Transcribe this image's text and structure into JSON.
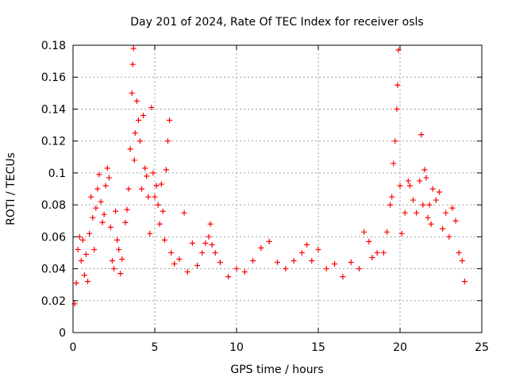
{
  "chart_data": {
    "type": "scatter",
    "title": "Day 201 of 2024, Rate Of TEC Index for receiver osls",
    "xlabel": "GPS time / hours",
    "ylabel": "ROTI / TECUs",
    "xlim": [
      0,
      25
    ],
    "ylim": [
      0,
      0.18
    ],
    "xticks": [
      "0",
      "5",
      "10",
      "15",
      "20",
      "25"
    ],
    "yticks": [
      "0",
      "0.02",
      "0.04",
      "0.06",
      "0.08",
      "0.1",
      "0.12",
      "0.14",
      "0.16",
      "0.18"
    ],
    "grid": true,
    "legend": "none",
    "marker": "+",
    "color": "#ff0000",
    "series": [
      {
        "points": [
          [
            0.1,
            0.018
          ],
          [
            0.2,
            0.031
          ],
          [
            0.3,
            0.052
          ],
          [
            0.4,
            0.06
          ],
          [
            0.5,
            0.045
          ],
          [
            0.6,
            0.058
          ],
          [
            0.7,
            0.036
          ],
          [
            0.8,
            0.049
          ],
          [
            0.9,
            0.032
          ],
          [
            1.0,
            0.062
          ],
          [
            1.1,
            0.085
          ],
          [
            1.2,
            0.072
          ],
          [
            1.3,
            0.052
          ],
          [
            1.4,
            0.078
          ],
          [
            1.5,
            0.09
          ],
          [
            1.6,
            0.099
          ],
          [
            1.7,
            0.082
          ],
          [
            1.8,
            0.069
          ],
          [
            1.9,
            0.074
          ],
          [
            2.0,
            0.092
          ],
          [
            2.1,
            0.103
          ],
          [
            2.2,
            0.097
          ],
          [
            2.3,
            0.066
          ],
          [
            2.4,
            0.045
          ],
          [
            2.5,
            0.04
          ],
          [
            2.6,
            0.076
          ],
          [
            2.7,
            0.058
          ],
          [
            2.8,
            0.052
          ],
          [
            2.9,
            0.037
          ],
          [
            3.0,
            0.046
          ],
          [
            3.2,
            0.069
          ],
          [
            3.3,
            0.077
          ],
          [
            3.4,
            0.09
          ],
          [
            3.5,
            0.115
          ],
          [
            3.6,
            0.15
          ],
          [
            3.65,
            0.168
          ],
          [
            3.7,
            0.178
          ],
          [
            3.75,
            0.108
          ],
          [
            3.8,
            0.125
          ],
          [
            3.9,
            0.145
          ],
          [
            4.0,
            0.133
          ],
          [
            4.1,
            0.12
          ],
          [
            4.2,
            0.09
          ],
          [
            4.3,
            0.136
          ],
          [
            4.4,
            0.103
          ],
          [
            4.5,
            0.098
          ],
          [
            4.6,
            0.085
          ],
          [
            4.7,
            0.062
          ],
          [
            4.8,
            0.141
          ],
          [
            4.9,
            0.1
          ],
          [
            5.0,
            0.085
          ],
          [
            5.1,
            0.092
          ],
          [
            5.2,
            0.08
          ],
          [
            5.3,
            0.068
          ],
          [
            5.4,
            0.093
          ],
          [
            5.5,
            0.076
          ],
          [
            5.6,
            0.058
          ],
          [
            5.7,
            0.102
          ],
          [
            5.8,
            0.12
          ],
          [
            5.9,
            0.133
          ],
          [
            6.0,
            0.05
          ],
          [
            6.2,
            0.043
          ],
          [
            6.5,
            0.046
          ],
          [
            6.8,
            0.075
          ],
          [
            7.0,
            0.038
          ],
          [
            7.3,
            0.056
          ],
          [
            7.6,
            0.042
          ],
          [
            7.9,
            0.05
          ],
          [
            8.1,
            0.056
          ],
          [
            8.3,
            0.06
          ],
          [
            8.4,
            0.068
          ],
          [
            8.5,
            0.055
          ],
          [
            8.7,
            0.05
          ],
          [
            9.0,
            0.044
          ],
          [
            9.5,
            0.035
          ],
          [
            10.0,
            0.04
          ],
          [
            10.5,
            0.038
          ],
          [
            11.0,
            0.045
          ],
          [
            11.5,
            0.053
          ],
          [
            12.0,
            0.057
          ],
          [
            12.5,
            0.044
          ],
          [
            13.0,
            0.04
          ],
          [
            13.5,
            0.045
          ],
          [
            14.0,
            0.05
          ],
          [
            14.3,
            0.055
          ],
          [
            14.6,
            0.045
          ],
          [
            15.0,
            0.052
          ],
          [
            15.5,
            0.04
          ],
          [
            16.0,
            0.043
          ],
          [
            16.5,
            0.035
          ],
          [
            17.0,
            0.044
          ],
          [
            17.5,
            0.04
          ],
          [
            17.8,
            0.063
          ],
          [
            18.1,
            0.057
          ],
          [
            18.3,
            0.047
          ],
          [
            18.6,
            0.05
          ],
          [
            19.0,
            0.05
          ],
          [
            19.2,
            0.063
          ],
          [
            19.4,
            0.08
          ],
          [
            19.5,
            0.085
          ],
          [
            19.6,
            0.106
          ],
          [
            19.7,
            0.12
          ],
          [
            19.8,
            0.14
          ],
          [
            19.85,
            0.155
          ],
          [
            19.9,
            0.177
          ],
          [
            20.0,
            0.092
          ],
          [
            20.1,
            0.062
          ],
          [
            20.3,
            0.075
          ],
          [
            20.5,
            0.095
          ],
          [
            20.6,
            0.092
          ],
          [
            20.8,
            0.083
          ],
          [
            21.0,
            0.075
          ],
          [
            21.2,
            0.095
          ],
          [
            21.3,
            0.124
          ],
          [
            21.4,
            0.08
          ],
          [
            21.5,
            0.102
          ],
          [
            21.6,
            0.097
          ],
          [
            21.7,
            0.072
          ],
          [
            21.8,
            0.08
          ],
          [
            21.9,
            0.068
          ],
          [
            22.0,
            0.09
          ],
          [
            22.2,
            0.083
          ],
          [
            22.4,
            0.088
          ],
          [
            22.6,
            0.065
          ],
          [
            22.8,
            0.075
          ],
          [
            23.0,
            0.06
          ],
          [
            23.2,
            0.078
          ],
          [
            23.4,
            0.07
          ],
          [
            23.6,
            0.05
          ],
          [
            23.8,
            0.045
          ],
          [
            23.95,
            0.032
          ]
        ]
      }
    ]
  }
}
